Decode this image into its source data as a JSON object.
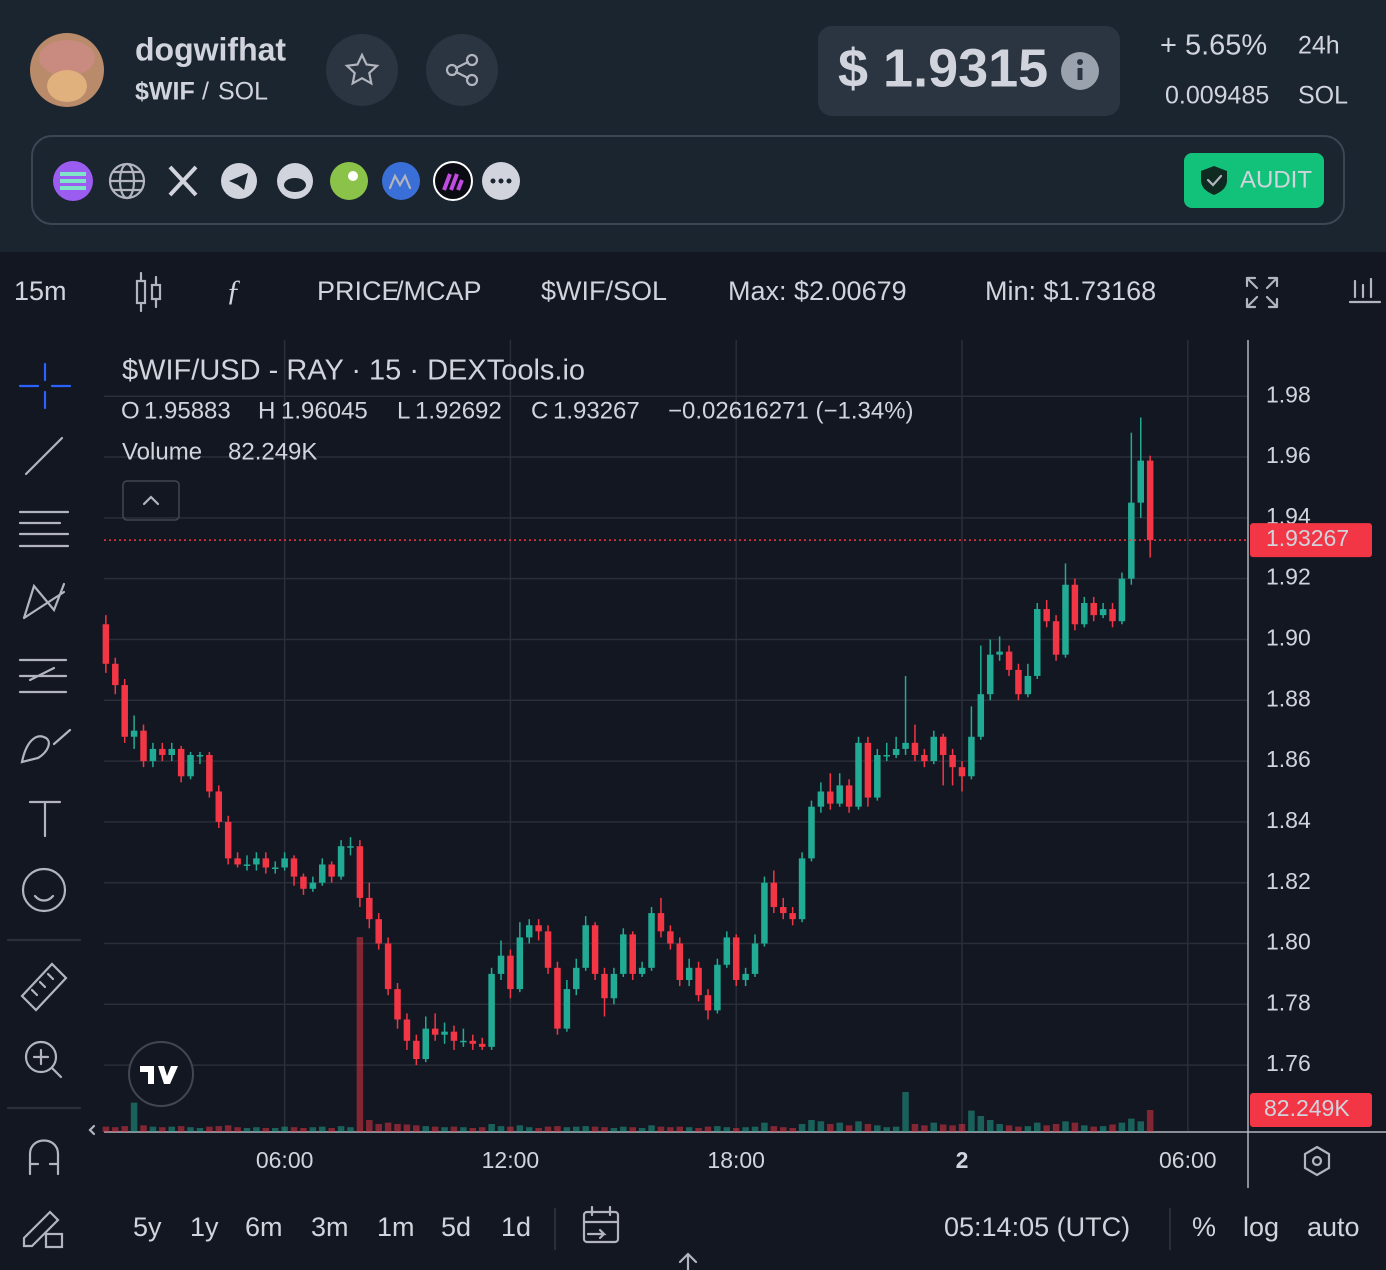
{
  "header": {
    "name": "dogwifhat",
    "symbol": "$WIF",
    "separator": "/",
    "quote": "SOL",
    "price": "$ 1.9315",
    "change": "+ 5.65%",
    "period": "24h",
    "price_native": "0.009485",
    "native_unit": "SOL",
    "audit": "AUDIT"
  },
  "toolbar": {
    "interval": "15m",
    "price": "PRICE",
    "mcap": "/MCAP",
    "pair": "$WIF/SOL",
    "max": "Max: $2.00679",
    "min": "Min: $1.73168"
  },
  "chart_data": {
    "type": "candlestick",
    "title": "$WIF/USD - RAY · 15 · DEXTools.io",
    "legend": {
      "open_label": "O",
      "high_label": "H",
      "low_label": "L",
      "close_label": "C",
      "change": "−0.02616271 (−1.34%)",
      "volume_label": "Volume",
      "volume_value": "82.249K"
    },
    "up_color": "#22ab94",
    "down_color": "#f23645",
    "xlim": [
      1.2,
      31.6
    ],
    "ylim": [
      1.738,
      1.9985
    ],
    "xticks": [
      {
        "value": 6,
        "label": "06:00"
      },
      {
        "value": 12,
        "label": "12:00"
      },
      {
        "value": 18,
        "label": "18:00"
      },
      {
        "value": 24,
        "label": "2"
      },
      {
        "value": 30,
        "label": "06:00"
      }
    ],
    "yticks": [
      1.98,
      1.96,
      1.94,
      1.92,
      {
        "value": 1.9,
        "label": "1.90"
      },
      1.88,
      1.86,
      1.84,
      1.82,
      {
        "value": 1.8,
        "label": "1.80"
      },
      1.78,
      1.76
    ],
    "grid": true,
    "x": [
      1.25,
      1.5,
      1.75,
      2,
      2.25,
      2.5,
      2.75,
      3,
      3.25,
      3.5,
      3.75,
      4,
      4.25,
      4.5,
      4.75,
      5,
      5.25,
      5.5,
      5.75,
      6,
      6.25,
      6.5,
      6.75,
      7,
      7.25,
      7.5,
      7.75,
      8,
      8.25,
      8.5,
      8.75,
      9,
      9.25,
      9.5,
      9.75,
      10,
      10.25,
      10.5,
      10.75,
      11,
      11.25,
      11.5,
      11.75,
      12,
      12.25,
      12.5,
      12.75,
      13,
      13.25,
      13.5,
      13.75,
      14,
      14.25,
      14.5,
      14.75,
      15,
      15.25,
      15.5,
      15.75,
      16,
      16.25,
      16.5,
      16.75,
      17,
      17.25,
      17.5,
      17.75,
      18,
      18.25,
      18.5,
      18.75,
      19,
      19.25,
      19.5,
      19.75,
      20,
      20.25,
      20.5,
      20.75,
      21,
      21.25,
      21.5,
      21.75,
      22,
      22.25,
      22.5,
      22.75,
      23,
      23.25,
      23.5,
      23.75,
      24,
      24.25,
      24.5,
      24.75,
      25,
      25.25,
      25.5,
      25.75,
      26,
      26.25,
      26.5,
      26.75,
      27,
      27.25,
      27.5,
      27.75,
      28,
      28.25,
      28.5,
      28.75,
      29
    ],
    "candles": [
      [
        1.905,
        1.908,
        1.889,
        1.892
      ],
      [
        1.892,
        1.894,
        1.882,
        1.885
      ],
      [
        1.885,
        1.887,
        1.866,
        1.868
      ],
      [
        1.868,
        1.875,
        1.864,
        1.87
      ],
      [
        1.87,
        1.872,
        1.858,
        1.86
      ],
      [
        1.86,
        1.866,
        1.858,
        1.864
      ],
      [
        1.864,
        1.866,
        1.86,
        1.862
      ],
      [
        1.862,
        1.866,
        1.86,
        1.864
      ],
      [
        1.864,
        1.865,
        1.853,
        1.855
      ],
      [
        1.855,
        1.863,
        1.854,
        1.862
      ],
      [
        1.862,
        1.863,
        1.859,
        1.862
      ],
      [
        1.862,
        1.863,
        1.848,
        1.85
      ],
      [
        1.85,
        1.852,
        1.838,
        1.84
      ],
      [
        1.84,
        1.842,
        1.826,
        1.828
      ],
      [
        1.828,
        1.83,
        1.825,
        1.826
      ],
      [
        1.826,
        1.829,
        1.824,
        1.826
      ],
      [
        1.826,
        1.83,
        1.824,
        1.828
      ],
      [
        1.828,
        1.83,
        1.823,
        1.825
      ],
      [
        1.825,
        1.827,
        1.823,
        1.825
      ],
      [
        1.825,
        1.83,
        1.824,
        1.828
      ],
      [
        1.828,
        1.829,
        1.819,
        1.822
      ],
      [
        1.822,
        1.823,
        1.816,
        1.818
      ],
      [
        1.818,
        1.822,
        1.817,
        1.82
      ],
      [
        1.82,
        1.828,
        1.819,
        1.826
      ],
      [
        1.826,
        1.827,
        1.82,
        1.822
      ],
      [
        1.822,
        1.834,
        1.821,
        1.832
      ],
      [
        1.832,
        1.835,
        1.829,
        1.832
      ],
      [
        1.832,
        1.834,
        1.812,
        1.815
      ],
      [
        1.815,
        1.82,
        1.805,
        1.808
      ],
      [
        1.808,
        1.81,
        1.798,
        1.8
      ],
      [
        1.8,
        1.802,
        1.783,
        1.785
      ],
      [
        1.785,
        1.787,
        1.772,
        1.775
      ],
      [
        1.775,
        1.777,
        1.765,
        1.768
      ],
      [
        1.768,
        1.77,
        1.76,
        1.762
      ],
      [
        1.762,
        1.776,
        1.761,
        1.772
      ],
      [
        1.772,
        1.777,
        1.768,
        1.77
      ],
      [
        1.77,
        1.774,
        1.767,
        1.771
      ],
      [
        1.771,
        1.773,
        1.765,
        1.768
      ],
      [
        1.768,
        1.772,
        1.766,
        1.768
      ],
      [
        1.768,
        1.77,
        1.765,
        1.767
      ],
      [
        1.767,
        1.769,
        1.765,
        1.766
      ],
      [
        1.766,
        1.792,
        1.765,
        1.79
      ],
      [
        1.79,
        1.801,
        1.788,
        1.796
      ],
      [
        1.796,
        1.798,
        1.782,
        1.785
      ],
      [
        1.785,
        1.807,
        1.784,
        1.802
      ],
      [
        1.802,
        1.808,
        1.8,
        1.806
      ],
      [
        1.806,
        1.808,
        1.801,
        1.804
      ],
      [
        1.804,
        1.806,
        1.79,
        1.792
      ],
      [
        1.792,
        1.794,
        1.77,
        1.772
      ],
      [
        1.772,
        1.788,
        1.771,
        1.785
      ],
      [
        1.785,
        1.795,
        1.783,
        1.792
      ],
      [
        1.792,
        1.809,
        1.791,
        1.806
      ],
      [
        1.806,
        1.807,
        1.788,
        1.79
      ],
      [
        1.79,
        1.792,
        1.776,
        1.782
      ],
      [
        1.782,
        1.792,
        1.78,
        1.79
      ],
      [
        1.79,
        1.805,
        1.789,
        1.803
      ],
      [
        1.803,
        1.804,
        1.788,
        1.79
      ],
      [
        1.79,
        1.794,
        1.789,
        1.792
      ],
      [
        1.792,
        1.812,
        1.791,
        1.81
      ],
      [
        1.81,
        1.815,
        1.802,
        1.804
      ],
      [
        1.804,
        1.806,
        1.798,
        1.8
      ],
      [
        1.8,
        1.802,
        1.786,
        1.788
      ],
      [
        1.788,
        1.795,
        1.786,
        1.792
      ],
      [
        1.792,
        1.794,
        1.781,
        1.783
      ],
      [
        1.783,
        1.785,
        1.775,
        1.778
      ],
      [
        1.778,
        1.795,
        1.777,
        1.793
      ],
      [
        1.793,
        1.804,
        1.792,
        1.802
      ],
      [
        1.802,
        1.803,
        1.786,
        1.788
      ],
      [
        1.788,
        1.792,
        1.786,
        1.79
      ],
      [
        1.79,
        1.803,
        1.789,
        1.8
      ],
      [
        1.8,
        1.822,
        1.799,
        1.82
      ],
      [
        1.82,
        1.824,
        1.81,
        1.812
      ],
      [
        1.812,
        1.815,
        1.808,
        1.81
      ],
      [
        1.81,
        1.812,
        1.806,
        1.808
      ],
      [
        1.808,
        1.83,
        1.807,
        1.828
      ],
      [
        1.828,
        1.847,
        1.827,
        1.845
      ],
      [
        1.845,
        1.853,
        1.843,
        1.85
      ],
      [
        1.85,
        1.856,
        1.844,
        1.846
      ],
      [
        1.846,
        1.856,
        1.845,
        1.852
      ],
      [
        1.852,
        1.854,
        1.843,
        1.845
      ],
      [
        1.845,
        1.868,
        1.844,
        1.866
      ],
      [
        1.866,
        1.868,
        1.845,
        1.848
      ],
      [
        1.848,
        1.864,
        1.847,
        1.862
      ],
      [
        1.862,
        1.866,
        1.86,
        1.862
      ],
      [
        1.862,
        1.868,
        1.861,
        1.864
      ],
      [
        1.864,
        1.888,
        1.862,
        1.866
      ],
      [
        1.866,
        1.872,
        1.86,
        1.862
      ],
      [
        1.862,
        1.864,
        1.858,
        1.86
      ],
      [
        1.86,
        1.87,
        1.859,
        1.868
      ],
      [
        1.868,
        1.869,
        1.852,
        1.862
      ],
      [
        1.862,
        1.864,
        1.852,
        1.858
      ],
      [
        1.858,
        1.86,
        1.85,
        1.855
      ],
      [
        1.855,
        1.878,
        1.854,
        1.868
      ],
      [
        1.868,
        1.898,
        1.867,
        1.882
      ],
      [
        1.882,
        1.9,
        1.88,
        1.895
      ],
      [
        1.895,
        1.901,
        1.893,
        1.896
      ],
      [
        1.896,
        1.898,
        1.888,
        1.89
      ],
      [
        1.89,
        1.892,
        1.88,
        1.882
      ],
      [
        1.882,
        1.892,
        1.881,
        1.888
      ],
      [
        1.888,
        1.912,
        1.887,
        1.91
      ],
      [
        1.91,
        1.913,
        1.904,
        1.906
      ],
      [
        1.906,
        1.908,
        1.893,
        1.895
      ],
      [
        1.895,
        1.925,
        1.894,
        1.918
      ],
      [
        1.918,
        1.92,
        1.903,
        1.905
      ],
      [
        1.905,
        1.914,
        1.904,
        1.912
      ],
      [
        1.912,
        1.914,
        1.906,
        1.908
      ],
      [
        1.908,
        1.912,
        1.907,
        1.91
      ],
      [
        1.91,
        1.912,
        1.904,
        1.906
      ],
      [
        1.906,
        1.922,
        1.905,
        1.92
      ],
      [
        1.92,
        1.968,
        1.918,
        1.945
      ],
      [
        1.945,
        1.973,
        1.94,
        1.95883
      ],
      [
        1.95883,
        1.96045,
        1.92692,
        1.93267
      ]
    ],
    "volumes": [
      20,
      18,
      22,
      110,
      25,
      20,
      18,
      20,
      22,
      18,
      15,
      20,
      22,
      25,
      18,
      15,
      18,
      15,
      15,
      20,
      18,
      15,
      18,
      20,
      15,
      22,
      18,
      730,
      45,
      30,
      35,
      30,
      28,
      25,
      22,
      20,
      18,
      20,
      18,
      15,
      18,
      30,
      22,
      20,
      25,
      18,
      15,
      20,
      22,
      18,
      20,
      22,
      20,
      18,
      15,
      20,
      18,
      15,
      25,
      20,
      18,
      20,
      18,
      15,
      20,
      22,
      18,
      15,
      18,
      20,
      35,
      22,
      18,
      15,
      30,
      45,
      40,
      30,
      35,
      25,
      40,
      30,
      25,
      18,
      20,
      150,
      30,
      25,
      35,
      28,
      25,
      30,
      80,
      60,
      45,
      30,
      25,
      20,
      22,
      35,
      25,
      30,
      40,
      35,
      25,
      20,
      22,
      28,
      35,
      50,
      40,
      82.249
    ]
  },
  "footer": {
    "ranges": [
      "5y",
      "1y",
      "6m",
      "3m",
      "1m",
      "5d",
      "1d"
    ],
    "clock": "05:14:05 (UTC)",
    "percent": "%",
    "log": "log",
    "auto": "auto"
  }
}
